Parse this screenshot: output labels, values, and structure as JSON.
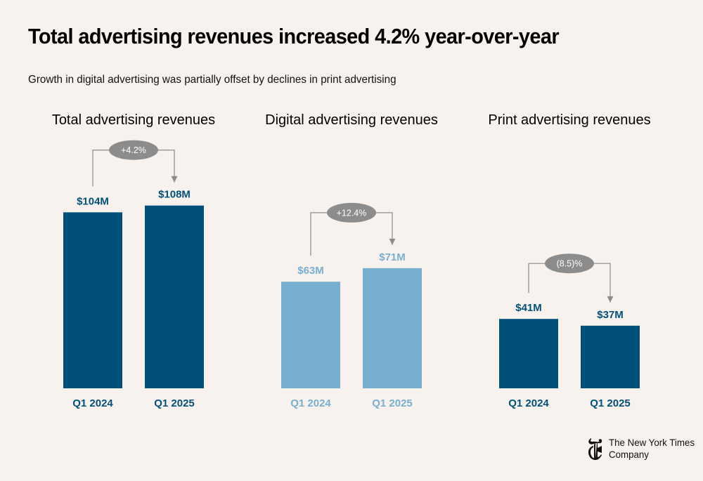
{
  "header": {
    "title": "Total advertising revenues increased 4.2% year-over-year",
    "subtitle": "Growth in digital advertising was partially offset by declines in print advertising"
  },
  "colors": {
    "background": "#f7f2ed",
    "dark_blue": "#00507a",
    "light_blue": "#78afd0",
    "annotation_gray": "#8c8c8c"
  },
  "chart_data": [
    {
      "type": "bar",
      "title": "Total advertising revenues",
      "categories": [
        "Q1 2024",
        "Q1 2025"
      ],
      "values": [
        104,
        108
      ],
      "value_labels": [
        "$104M",
        "$108M"
      ],
      "change_label": "+4.2%",
      "color": "#00507a",
      "unit": "$M"
    },
    {
      "type": "bar",
      "title": "Digital advertising revenues",
      "categories": [
        "Q1 2024",
        "Q1 2025"
      ],
      "values": [
        63,
        71
      ],
      "value_labels": [
        "$63M",
        "$71M"
      ],
      "change_label": "+12.4%",
      "color": "#78afd0",
      "unit": "$M"
    },
    {
      "type": "bar",
      "title": "Print advertising revenues",
      "categories": [
        "Q1 2024",
        "Q1 2025"
      ],
      "values": [
        41,
        37
      ],
      "value_labels": [
        "$41M",
        "$37M"
      ],
      "change_label": "(8.5)%",
      "color": "#00507a",
      "unit": "$M"
    }
  ],
  "footer": {
    "logo_icon": "nyt-t-logo-icon",
    "logo_line1": "The New York Times",
    "logo_line2": "Company"
  }
}
